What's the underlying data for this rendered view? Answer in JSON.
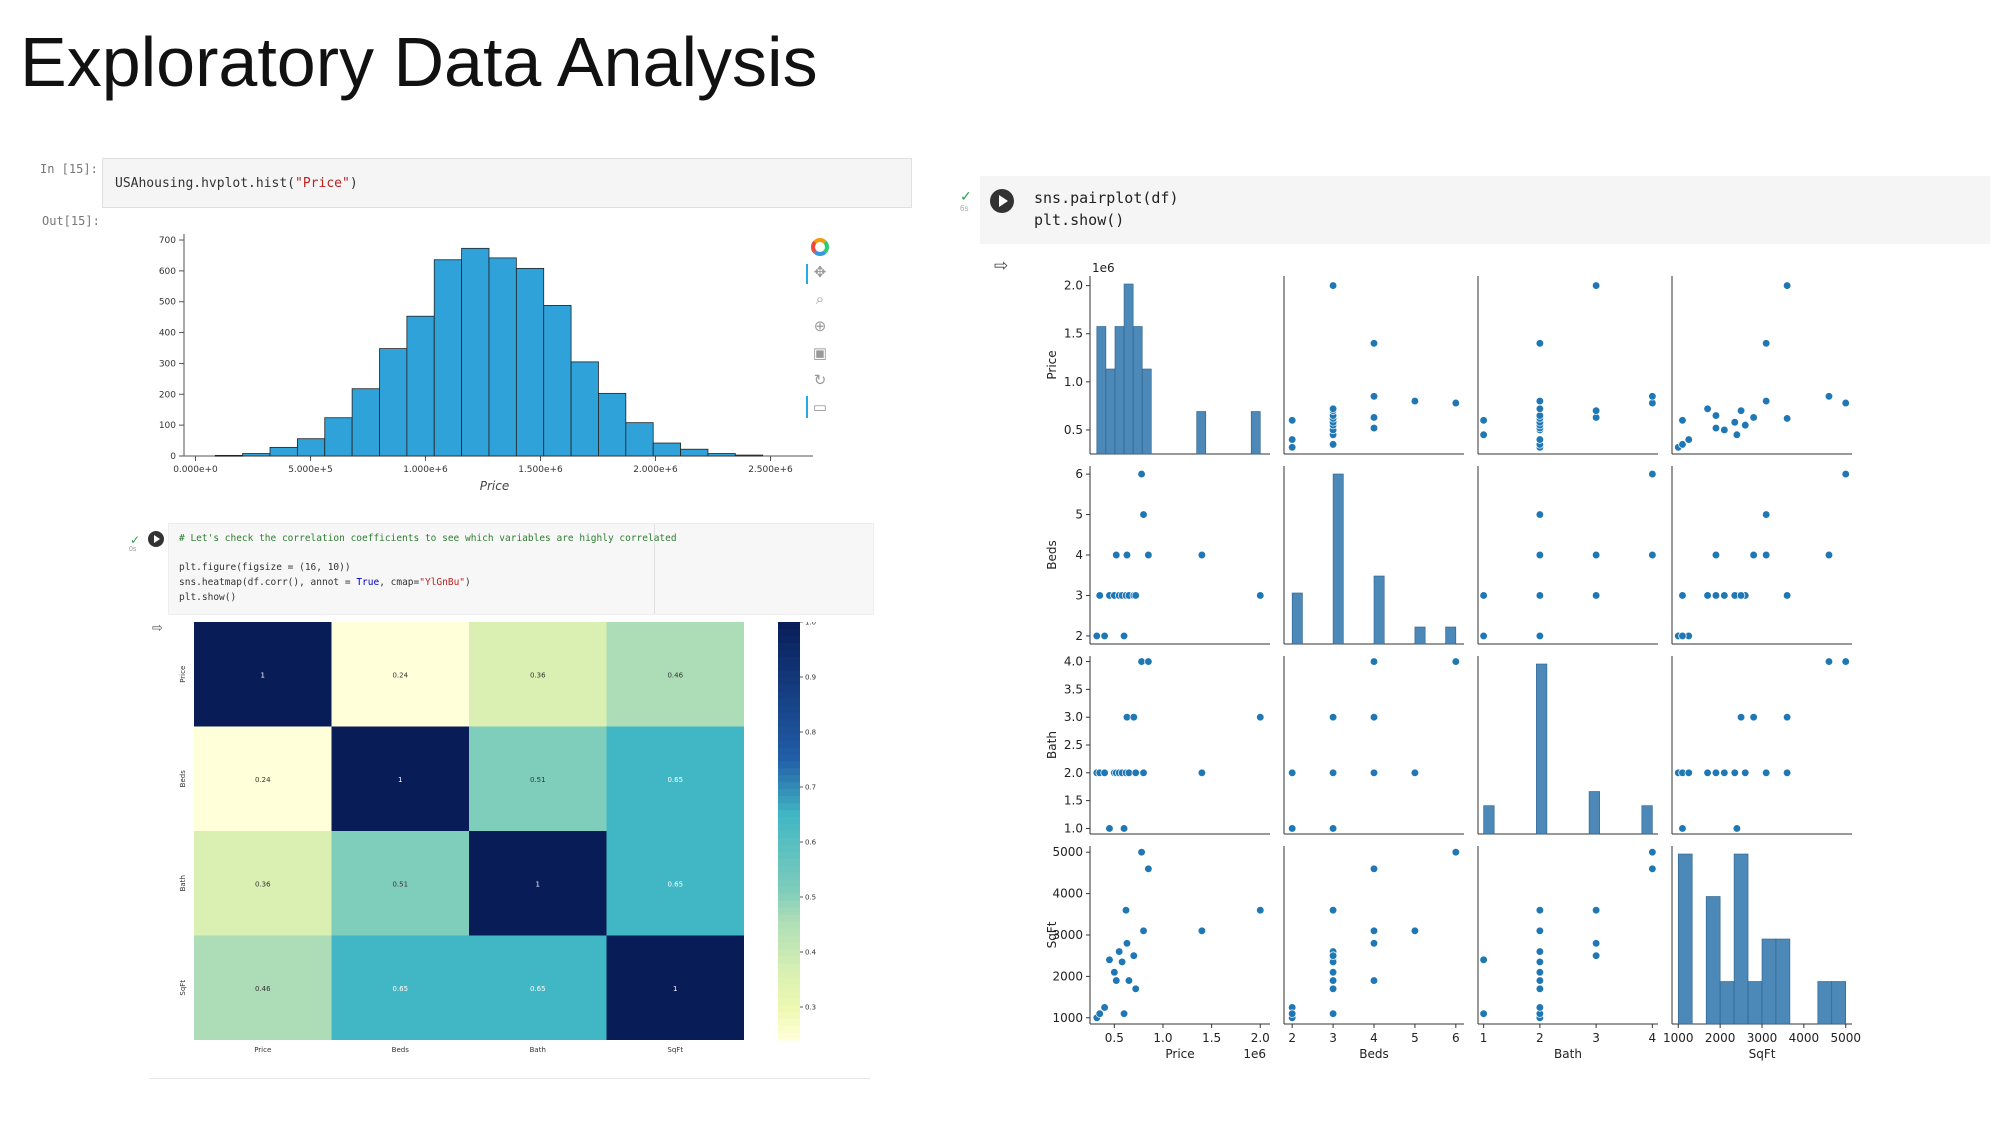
{
  "slide": {
    "title": "Exploratory Data Analysis"
  },
  "cell1": {
    "in_prompt": "In [15]:",
    "out_prompt": "Out[15]:",
    "code_prefix": "USAhousing.hvplot.hist(",
    "code_string": "\"Price\"",
    "code_suffix": ")"
  },
  "hist_toolbar": {
    "icons": [
      "hvplot-logo-icon",
      "pan-icon",
      "box-zoom-icon",
      "wheel-zoom-icon",
      "save-icon",
      "reset-icon",
      "hover-icon"
    ]
  },
  "cell2": {
    "comment": "# Let's check the correlation coefficients to see which variables are highly correlated",
    "line1": "plt.figure(figsize = (16, 10))",
    "line2_prefix": "sns.heatmap(df.corr(), annot = ",
    "line2_true": "True",
    "line2_mid": ", cmap=",
    "line2_string": "\"YlGnBu\"",
    "line2_suffix": ")",
    "line3": "plt.show()",
    "status": "0s"
  },
  "cell3": {
    "line1": "sns.pairplot(df)",
    "line2": "plt.show()",
    "status": "6s"
  },
  "colors": {
    "hist_bar": "#30a2da",
    "pair_point": "#1f77b4",
    "heat_dark": "#081d58"
  },
  "chart_data": [
    {
      "type": "bar",
      "chart": "histogram",
      "xlabel": "Price",
      "ylim": [
        0,
        700
      ],
      "yticks": [
        0,
        100,
        200,
        300,
        400,
        500,
        600,
        700
      ],
      "xlim": [
        -50000,
        2650000
      ],
      "xticks": [
        "0.000e+0",
        "5.000e+5",
        "1.000e+6",
        "1.500e+6",
        "2.000e+6",
        "2.500e+6"
      ],
      "xtick_values": [
        0,
        500000,
        1000000,
        1500000,
        2000000,
        2500000
      ],
      "bin_edges": [
        86000,
        205000,
        324000,
        443000,
        562000,
        681000,
        800000,
        919000,
        1038000,
        1157000,
        1276000,
        1395000,
        1514000,
        1633000,
        1752000,
        1871000,
        1990000,
        2109000,
        2228000,
        2347000,
        2466000
      ],
      "values": [
        2,
        8,
        28,
        56,
        124,
        218,
        348,
        453,
        636,
        673,
        642,
        608,
        488,
        305,
        203,
        108,
        42,
        22,
        8,
        3
      ]
    },
    {
      "type": "heatmap",
      "xlabels": [
        "Price",
        "Beds",
        "Bath",
        "SqFt"
      ],
      "ylabels": [
        "Price",
        "Beds",
        "Bath",
        "SqFt"
      ],
      "matrix": [
        [
          1,
          0.24,
          0.36,
          0.46
        ],
        [
          0.24,
          1,
          0.51,
          0.65
        ],
        [
          0.36,
          0.51,
          1,
          0.65
        ],
        [
          0.46,
          0.65,
          0.65,
          1
        ]
      ],
      "annotations": [
        [
          "1",
          "0.24",
          "0.36",
          "0.46"
        ],
        [
          "0.24",
          "1",
          "0.51",
          "0.65"
        ],
        [
          "0.36",
          "0.51",
          "1",
          "0.65"
        ],
        [
          "0.46",
          "0.65",
          "0.65",
          "1"
        ]
      ],
      "colorbar_range": [
        0.24,
        1
      ],
      "colorbar_ticks": [
        "1.0",
        "0.9",
        "0.8",
        "0.7",
        "0.6",
        "0.5",
        "0.4",
        "0.3"
      ],
      "colormap": "YlGnBu"
    },
    {
      "type": "scatter",
      "chart": "pairplot",
      "variables": [
        "Price",
        "Beds",
        "Bath",
        "SqFt"
      ],
      "price_scale_label": "1e6",
      "points": [
        {
          "Price": 0.32,
          "Beds": 2,
          "Bath": 2,
          "SqFt": 1000
        },
        {
          "Price": 0.35,
          "Beds": 3,
          "Bath": 2,
          "SqFt": 1100
        },
        {
          "Price": 0.4,
          "Beds": 2,
          "Bath": 2,
          "SqFt": 1250
        },
        {
          "Price": 0.45,
          "Beds": 3,
          "Bath": 1,
          "SqFt": 2400
        },
        {
          "Price": 0.5,
          "Beds": 3,
          "Bath": 2,
          "SqFt": 2100
        },
        {
          "Price": 0.52,
          "Beds": 4,
          "Bath": 2,
          "SqFt": 1900
        },
        {
          "Price": 0.55,
          "Beds": 3,
          "Bath": 2,
          "SqFt": 2600
        },
        {
          "Price": 0.58,
          "Beds": 3,
          "Bath": 2,
          "SqFt": 2350
        },
        {
          "Price": 0.6,
          "Beds": 2,
          "Bath": 1,
          "SqFt": 1100
        },
        {
          "Price": 0.62,
          "Beds": 3,
          "Bath": 2,
          "SqFt": 3600
        },
        {
          "Price": 0.63,
          "Beds": 4,
          "Bath": 3,
          "SqFt": 2800
        },
        {
          "Price": 0.65,
          "Beds": 3,
          "Bath": 2,
          "SqFt": 1900
        },
        {
          "Price": 0.7,
          "Beds": 3,
          "Bath": 3,
          "SqFt": 2500
        },
        {
          "Price": 0.72,
          "Beds": 3,
          "Bath": 2,
          "SqFt": 1700
        },
        {
          "Price": 0.78,
          "Beds": 6,
          "Bath": 4,
          "SqFt": 5000
        },
        {
          "Price": 0.8,
          "Beds": 5,
          "Bath": 2,
          "SqFt": 3100
        },
        {
          "Price": 0.85,
          "Beds": 4,
          "Bath": 4,
          "SqFt": 4600
        },
        {
          "Price": 1.4,
          "Beds": 4,
          "Bath": 2,
          "SqFt": 3100
        },
        {
          "Price": 2.0,
          "Beds": 3,
          "Bath": 3,
          "SqFt": 3600
        }
      ],
      "axis_ranges": {
        "Price": [
          0.25,
          2.1
        ],
        "Beds": [
          1.8,
          6.2
        ],
        "Bath": [
          0.9,
          4.1
        ],
        "SqFt": [
          850,
          5150
        ]
      },
      "xticks": {
        "Price": [
          "0.5",
          "1.0",
          "1.5",
          "2.0"
        ],
        "Beds": [
          "2",
          "3",
          "4",
          "5",
          "6"
        ],
        "Bath": [
          "1",
          "2",
          "3",
          "4"
        ],
        "SqFt": [
          "1000",
          "2000",
          "3000",
          "4000",
          "5000"
        ]
      },
      "yticks": {
        "Price": [
          "0.5",
          "1.0",
          "1.5",
          "2.0"
        ],
        "Beds": [
          "2",
          "3",
          "4",
          "5",
          "6"
        ],
        "Bath": [
          "1.0",
          "1.5",
          "2.0",
          "2.5",
          "3.0",
          "3.5",
          "4.0"
        ],
        "SqFt": [
          "1000",
          "2000",
          "3000",
          "4000",
          "5000"
        ]
      }
    }
  ]
}
